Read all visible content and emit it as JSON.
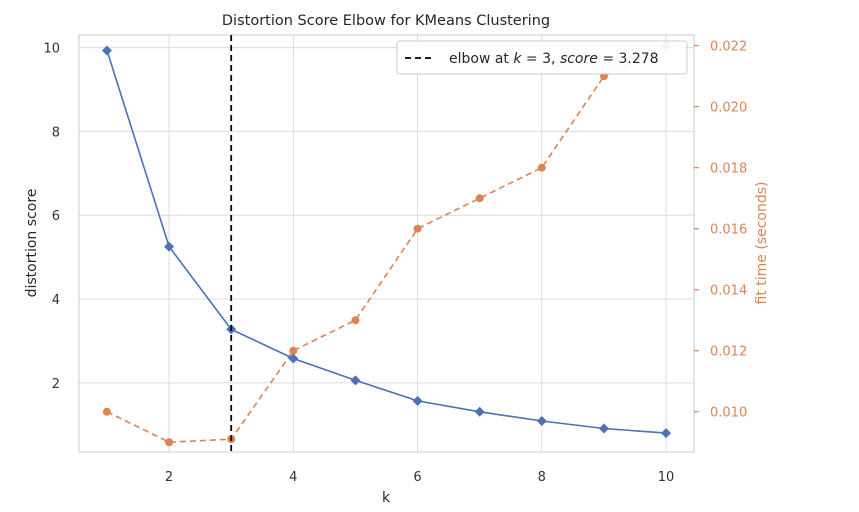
{
  "chart_data": {
    "type": "line",
    "title": "Distortion Score Elbow for KMeans Clustering",
    "xlabel": "k",
    "ylabel": "distortion score",
    "y2label": "fit time (seconds)",
    "x": [
      1,
      2,
      3,
      4,
      5,
      6,
      7,
      8,
      9,
      10
    ],
    "xticks": [
      "2",
      "4",
      "6",
      "8",
      "10"
    ],
    "yticks": [
      "2",
      "4",
      "6",
      "8",
      "10"
    ],
    "y2ticks": [
      "0.010",
      "0.012",
      "0.014",
      "0.016",
      "0.018",
      "0.020",
      "0.022"
    ],
    "xlim": [
      0.55,
      10.45
    ],
    "ylim": [
      0.35,
      10.3
    ],
    "y2lim": [
      0.00868,
      0.02235
    ],
    "series": [
      {
        "axis": "left",
        "marker": "diamond",
        "linestyle": "solid",
        "color": "#4c72b0",
        "values": [
          9.93,
          5.25,
          3.278,
          2.58,
          2.06,
          1.57,
          1.31,
          1.09,
          0.91,
          0.8
        ]
      },
      {
        "axis": "right",
        "marker": "circle",
        "linestyle": "dashed",
        "color": "#dd8452",
        "values": [
          0.01,
          0.009,
          0.0091,
          0.012,
          0.013,
          0.016,
          0.017,
          0.018,
          0.021,
          0.022
        ]
      }
    ],
    "elbow": {
      "k": 3,
      "legend_parts": [
        "elbow at ",
        "k",
        " = 3, ",
        "score",
        " = 3.278"
      ]
    },
    "legend_position": "upper-right",
    "grid": true,
    "colors": {
      "grid": "#dcdcdc",
      "spine": "#cccccc",
      "left_axis": "#4c72b0",
      "right_axis": "#dd8452",
      "elbow_line": "#000000"
    }
  }
}
